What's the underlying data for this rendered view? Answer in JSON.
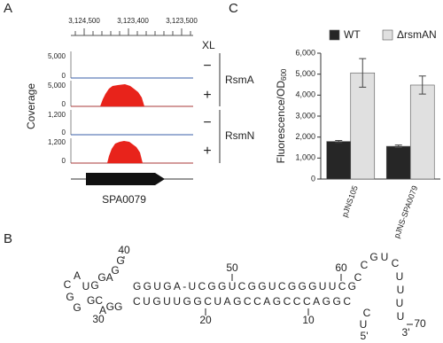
{
  "panel_labels": [
    "A",
    "B",
    "C"
  ],
  "coverage_panel": {
    "coordinates": [
      "3,124,500",
      "3,123,400",
      "3,123,500"
    ],
    "condition": "XL",
    "y_label": "Coverage",
    "tracks": [
      {
        "max": "5,000",
        "min": "0",
        "sign": "−"
      },
      {
        "max": "5,000",
        "min": "0",
        "sign": "+"
      },
      {
        "max": "1,200",
        "min": "0",
        "sign": "−"
      },
      {
        "max": "1,200",
        "min": "0",
        "sign": "+"
      }
    ],
    "groups": [
      "RsmA",
      "RsmN"
    ],
    "gene": "SPA0079"
  },
  "structure": {
    "top_strand": "GGUGA-UCGGUCGGUCGGGUUCG",
    "bottom_strand": "CUGUUGGCUAGCCAGCCCAGGC",
    "nucleotides": [
      {
        "text": "C",
        "color": "#d9342b"
      },
      {
        "text": "A",
        "color": "#d9342b"
      },
      {
        "text": "U",
        "color": "#d9342b"
      },
      {
        "text": "G",
        "color": "#d9342b"
      },
      {
        "text": "GA",
        "color": "#d9342b"
      },
      {
        "text": "G",
        "color": "#222222"
      },
      {
        "text": "G",
        "color": "#222222"
      },
      {
        "text": "G",
        "color": "#222222"
      },
      {
        "text": "G",
        "color": "#222222"
      },
      {
        "text": "GC",
        "color": "#222222"
      },
      {
        "text": "A",
        "color": "#222222"
      },
      {
        "text": "GG",
        "color": "#222222"
      },
      {
        "text": "C",
        "color": "#222222"
      },
      {
        "text": "C",
        "color": "#222222"
      },
      {
        "text": "G",
        "color": "#222222"
      },
      {
        "text": "U",
        "color": "#222222"
      },
      {
        "text": "C",
        "color": "#222222"
      },
      {
        "text": "U",
        "color": "#222222"
      },
      {
        "text": "U",
        "color": "#222222"
      },
      {
        "text": "U",
        "color": "#222222"
      },
      {
        "text": "U",
        "color": "#222222"
      },
      {
        "text": "C",
        "color": "#222222"
      },
      {
        "text": "U",
        "color": "#222222"
      }
    ],
    "numbers": [
      "40",
      "50",
      "60",
      "30",
      "20",
      "10",
      "70"
    ],
    "ends": [
      "5'",
      "3'"
    ]
  },
  "chart_data": {
    "type": "bar",
    "y_label": "Fluorescence/OD",
    "y_label_sub": "600",
    "categories": [
      "pJNS105",
      "pJNS-SPA0079"
    ],
    "series": [
      {
        "name": "WT",
        "color": "#262626",
        "values": [
          1790,
          1560
        ],
        "errors": [
          50,
          60
        ]
      },
      {
        "name": "ΔrsmAN",
        "color": "#e0e0e0",
        "values": [
          5060,
          4480
        ],
        "errors": [
          680,
          430
        ]
      }
    ],
    "ylim": [
      0,
      6000
    ],
    "yticks": [
      0,
      {
        "value": 1000,
        "label": "1,000"
      },
      {
        "value": 2000,
        "label": "2,000"
      },
      {
        "value": 3000,
        "label": "3,000"
      },
      {
        "value": 4000,
        "label": "4,000"
      },
      {
        "value": 5000,
        "label": "5,000"
      },
      {
        "value": 6000,
        "label": "6,000"
      }
    ],
    "error_bars": true,
    "legend": "top"
  }
}
